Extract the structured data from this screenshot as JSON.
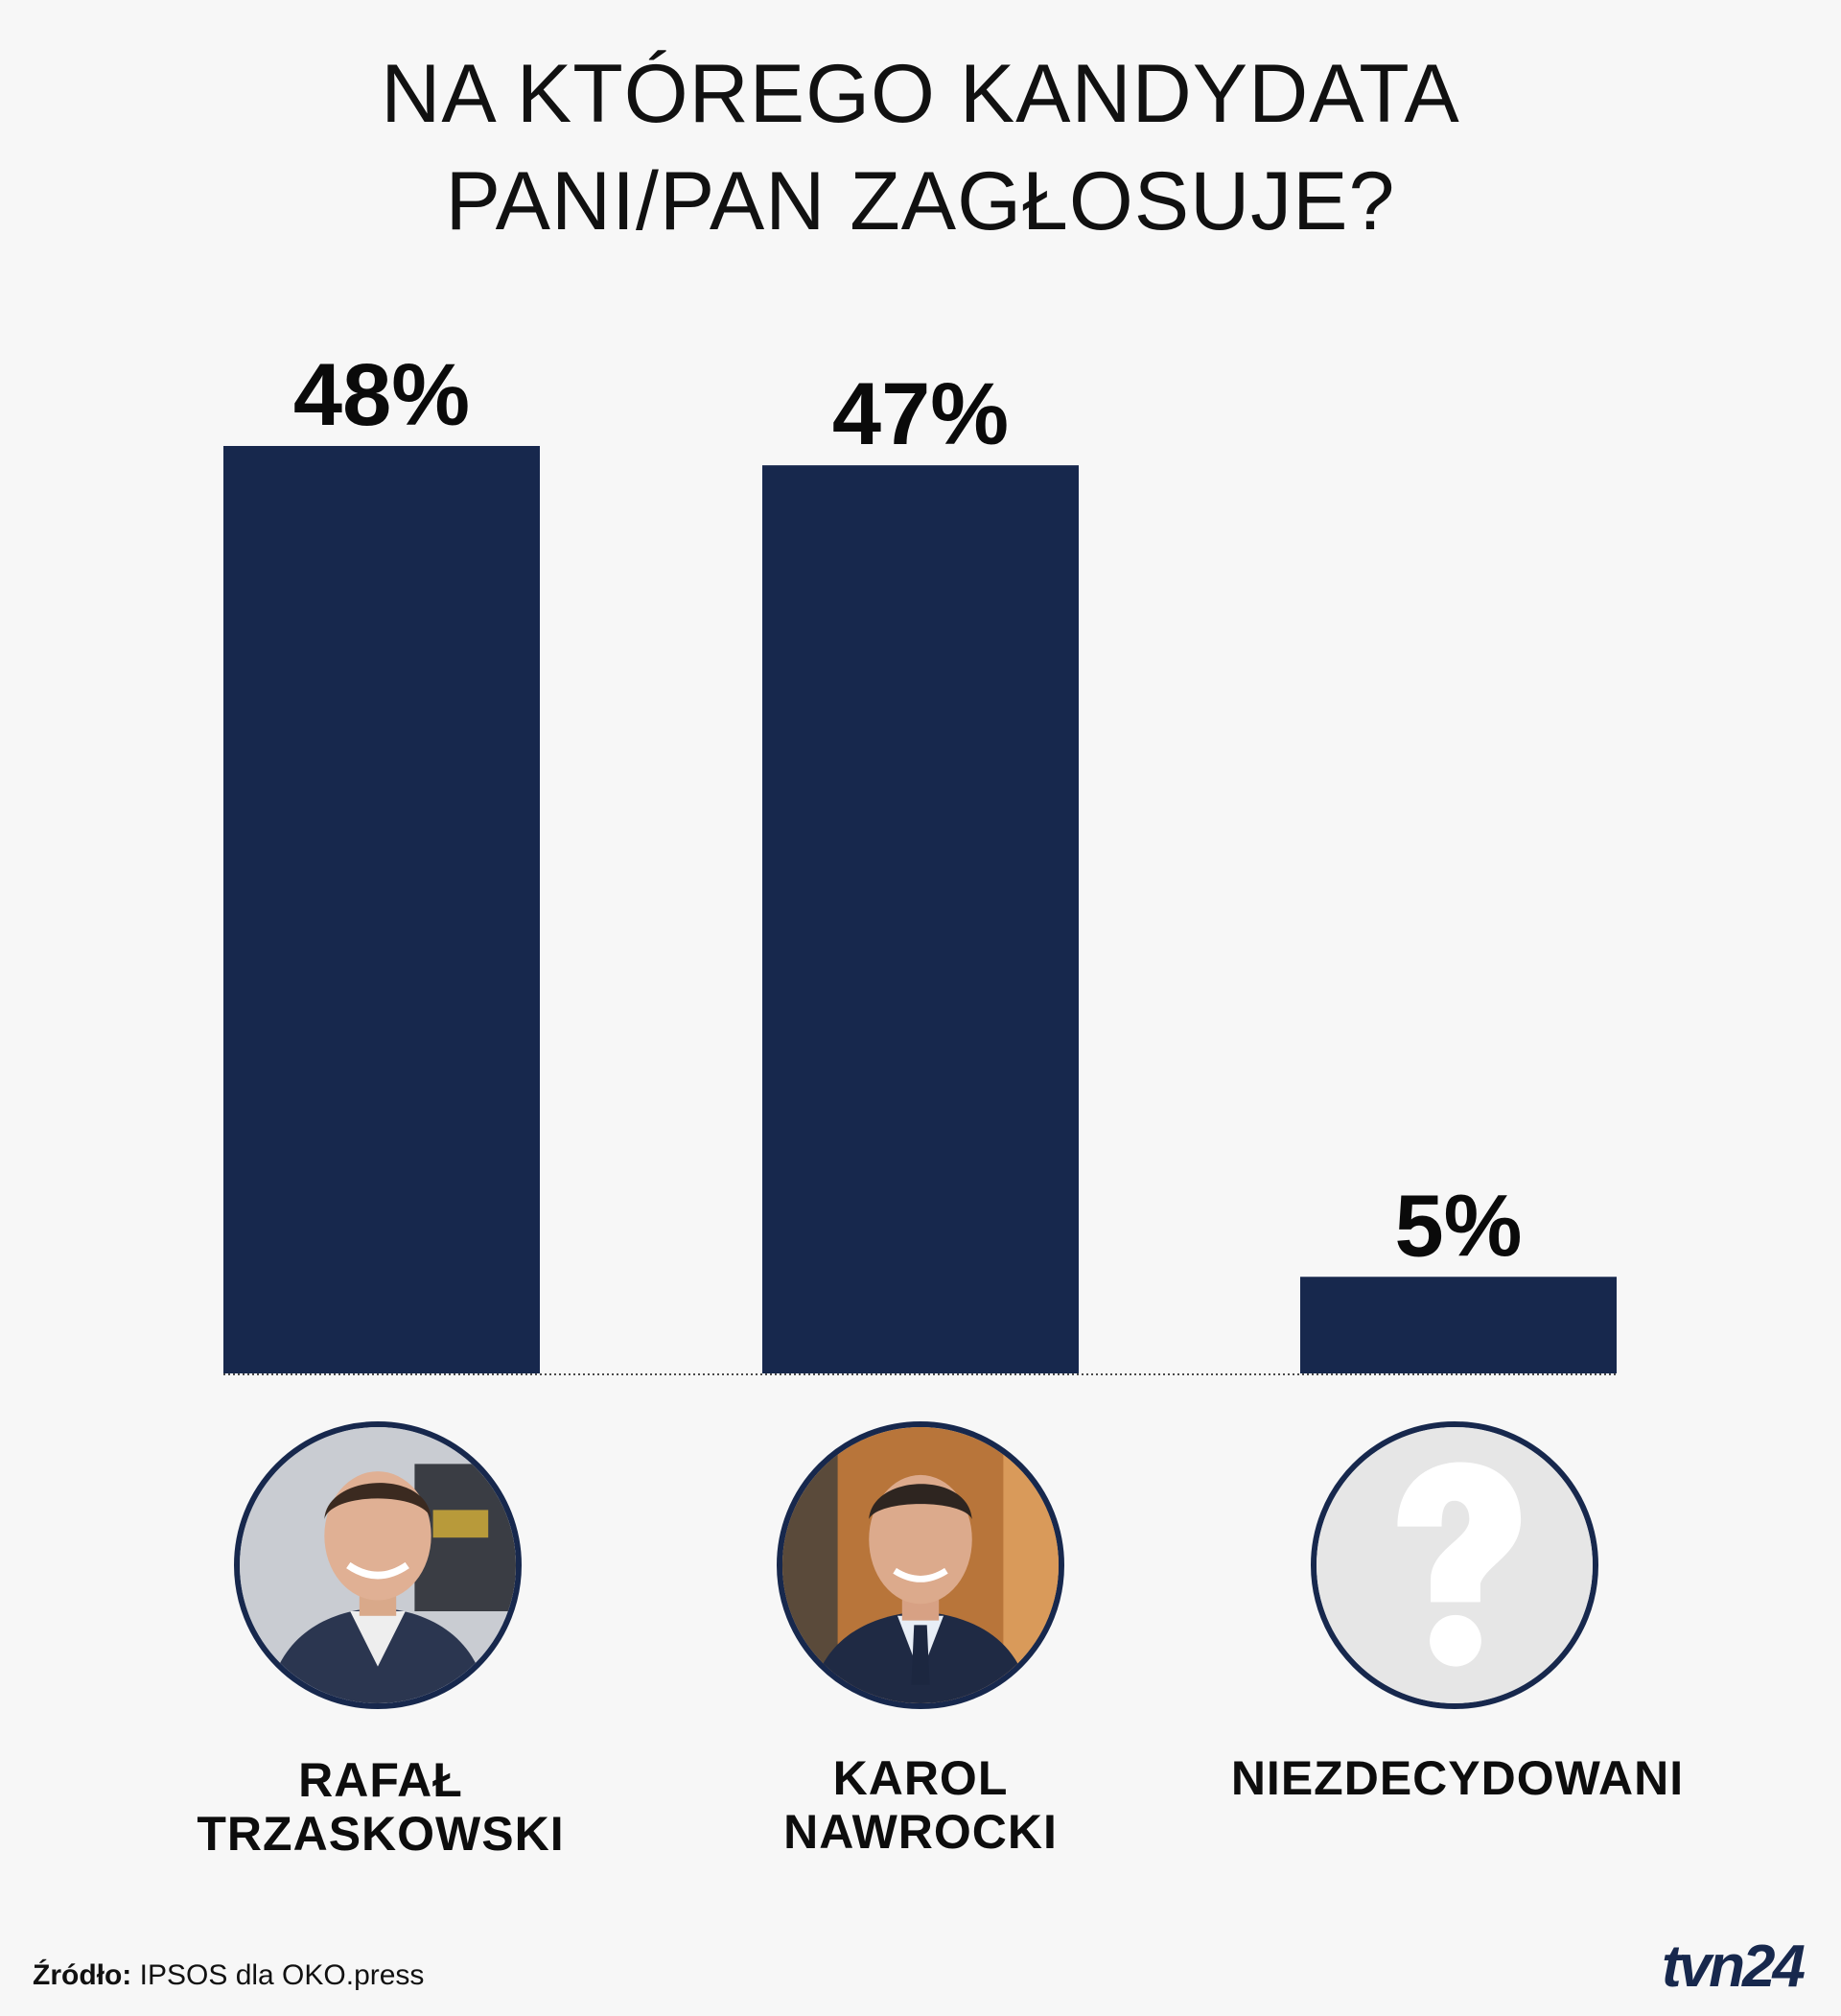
{
  "title": {
    "line1": "NA KTÓREGO KANDYDATA",
    "line2": "PANI/PAN ZAGŁOSUJE?"
  },
  "chart_data": {
    "type": "bar",
    "title": "NA KTÓREGO KANDYDATA PANI/PAN ZAGŁOSUJE?",
    "categories": [
      "RAFAŁ TRZASKOWSKI",
      "KAROL NAWROCKI",
      "NIEZDECYDOWANI"
    ],
    "values": [
      48,
      47,
      5
    ],
    "value_labels": [
      "48%",
      "47%",
      "5%"
    ],
    "unit": "%",
    "ylim": [
      0,
      48
    ],
    "grid": false,
    "legend": "none",
    "bar_color": "#17284d"
  },
  "candidates": [
    {
      "name_line1": "RAFAŁ",
      "name_line2": "TRZASKOWSKI",
      "photo": "person-photo"
    },
    {
      "name_line1": "KAROL",
      "name_line2": "NAWROCKI",
      "photo": "person-photo"
    },
    {
      "name_line1": "NIEZDECYDOWANI",
      "name_line2": "",
      "photo": "question-mark-icon"
    }
  ],
  "source": {
    "label": "Źródło:",
    "text": "IPSOS dla OKO.press"
  },
  "logo": {
    "text": "tvn24"
  },
  "colors": {
    "accent": "#17284d",
    "background": "#f7f7f7"
  }
}
